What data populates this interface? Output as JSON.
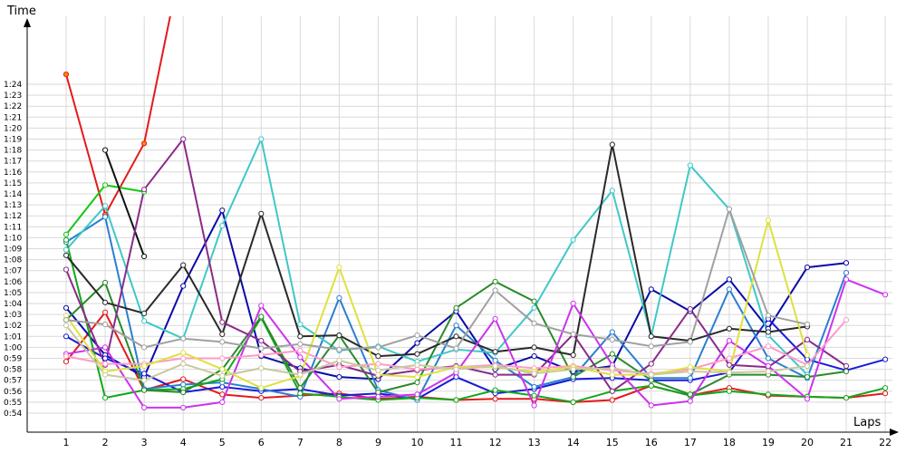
{
  "chart_data": {
    "type": "line",
    "title": "",
    "xlabel": "Laps",
    "ylabel": "Time",
    "x": [
      1,
      2,
      3,
      4,
      5,
      6,
      7,
      8,
      9,
      10,
      11,
      12,
      13,
      14,
      15,
      16,
      17,
      18,
      19,
      20,
      21,
      22
    ],
    "xlim": [
      0,
      22.5
    ],
    "ylim": [
      53,
      85
    ],
    "y_ticks": [
      "0:54",
      "0:55",
      "0:56",
      "0:57",
      "0:58",
      "0:59",
      "1:00",
      "1:01",
      "1:02",
      "1:03",
      "1:04",
      "1:05",
      "1:06",
      "1:07",
      "1:08",
      "1:09",
      "1:10",
      "1:11",
      "1:12",
      "1:13",
      "1:14",
      "1:15",
      "1:16",
      "1:17",
      "1:18",
      "1:19",
      "1:20",
      "1:21",
      "1:22",
      "1:23",
      "1:24"
    ],
    "y_tick_values": [
      54,
      55,
      56,
      57,
      58,
      59,
      60,
      61,
      62,
      63,
      64,
      65,
      66,
      67,
      68,
      69,
      70,
      71,
      72,
      73,
      74,
      75,
      76,
      77,
      78,
      79,
      80,
      81,
      82,
      83,
      84
    ],
    "grid": true,
    "legend": "none",
    "series": [
      {
        "color": "#e31a1c",
        "marker_fill": "#ff8c00",
        "values": [
          84.9,
          72.1,
          78.6,
          96.0,
          null,
          null,
          null,
          null,
          null,
          null,
          null,
          null,
          null,
          null,
          null,
          null,
          null,
          null,
          null,
          null,
          null,
          null
        ]
      },
      {
        "color": "#e31a1c",
        "values": [
          58.7,
          63.2,
          56.1,
          57.1,
          55.7,
          55.4,
          55.6,
          55.8,
          55.3,
          55.5,
          55.2,
          55.3,
          55.3,
          55.0,
          55.2,
          56.5,
          55.6,
          56.3,
          55.6,
          55.5,
          55.4,
          55.8
        ]
      },
      {
        "color": "#0a0aa8",
        "values": [
          63.6,
          59.3,
          57.3,
          65.6,
          72.5,
          59.2,
          58.1,
          57.3,
          57.1,
          60.4,
          63.3,
          58.0,
          59.2,
          57.8,
          58.3,
          65.3,
          63.3,
          66.2,
          61.7,
          67.3,
          67.7,
          null
        ]
      },
      {
        "color": "#1a1ad8",
        "values": [
          61.0,
          59.0,
          57.6,
          55.9,
          56.4,
          56.0,
          56.2,
          55.6,
          55.8,
          55.3,
          57.3,
          55.8,
          56.2,
          57.1,
          57.2,
          57.0,
          57.0,
          57.7,
          62.6,
          58.9,
          57.9,
          58.9
        ]
      },
      {
        "color": "#2a7fd0",
        "values": [
          69.6,
          71.9,
          56.2,
          56.6,
          56.8,
          56.2,
          55.5,
          64.5,
          56.1,
          55.2,
          62.0,
          58.8,
          56.4,
          57.3,
          61.4,
          57.2,
          57.2,
          65.3,
          59.0,
          57.2,
          66.8,
          null
        ]
      },
      {
        "color": "#3fc8c8",
        "values": [
          68.9,
          72.9,
          62.4,
          60.8,
          71.1,
          79.0,
          62.1,
          59.7,
          60.1,
          58.7,
          59.8,
          59.5,
          63.6,
          69.8,
          74.3,
          61.0,
          76.6,
          72.6,
          61.1,
          57.5,
          null,
          null
        ]
      },
      {
        "color": "#11a81a",
        "values": [
          69.8,
          55.4,
          56.1,
          56.2,
          57.1,
          62.7,
          55.8,
          55.5,
          55.2,
          55.4,
          55.2,
          56.1,
          55.6,
          55.0,
          56.0,
          56.5,
          55.6,
          56.0,
          55.7,
          55.5,
          55.4,
          56.3
        ]
      },
      {
        "color": "#11c811",
        "values": [
          70.3,
          74.8,
          74.2,
          null,
          null,
          null,
          null,
          null,
          null,
          null,
          null,
          null,
          null,
          null,
          null,
          null,
          null,
          null,
          null,
          null,
          null,
          null
        ]
      },
      {
        "color": "#2a8a2a",
        "values": [
          62.5,
          65.9,
          56.1,
          55.9,
          58.0,
          62.8,
          56.3,
          61.1,
          55.9,
          56.8,
          63.6,
          66.0,
          64.2,
          57.3,
          59.4,
          57.0,
          55.7,
          57.5,
          57.5,
          57.3,
          57.8,
          null
        ]
      },
      {
        "color": "#2a2a2a",
        "values": [
          68.4,
          64.1,
          63.1,
          67.5,
          61.2,
          72.2,
          61.0,
          61.1,
          59.2,
          59.4,
          61.0,
          59.6,
          60.0,
          59.3,
          78.5,
          61.0,
          60.6,
          61.7,
          61.4,
          61.9,
          null,
          null
        ]
      },
      {
        "color": "#111111",
        "values": [
          null,
          78.0,
          68.3,
          null,
          null,
          null,
          null,
          null,
          null,
          null,
          null,
          null,
          null,
          null,
          null,
          null,
          null,
          null,
          null,
          null,
          null,
          null
        ]
      },
      {
        "color": "#8a2a8a",
        "values": [
          67.1,
          58.4,
          74.4,
          79.0,
          62.3,
          60.6,
          57.8,
          58.4,
          57.4,
          57.9,
          58.3,
          57.5,
          57.5,
          61.2,
          56.0,
          58.5,
          63.5,
          58.4,
          58.2,
          60.7,
          58.3,
          null
        ]
      },
      {
        "color": "#cc33ee",
        "values": [
          59.4,
          60.0,
          54.5,
          54.5,
          55.0,
          63.8,
          59.1,
          55.3,
          55.5,
          55.7,
          57.7,
          62.6,
          54.7,
          64.0,
          58.4,
          54.7,
          55.1,
          60.6,
          58.3,
          55.3,
          66.2,
          64.8
        ]
      },
      {
        "color": "#ff9ac8",
        "values": [
          59.2,
          58.5,
          58.5,
          59.0,
          59.0,
          59.3,
          59.7,
          58.2,
          58.5,
          58.0,
          58.2,
          58.4,
          58.1,
          58.3,
          57.9,
          57.6,
          58.0,
          59.0,
          60.1,
          58.4,
          62.5,
          null
        ]
      },
      {
        "color": "#e0e040",
        "values": [
          62.9,
          57.8,
          58.3,
          59.5,
          58.0,
          56.3,
          57.4,
          67.3,
          57.5,
          57.3,
          58.2,
          58.2,
          57.8,
          58.2,
          57.5,
          57.5,
          58.2,
          57.8,
          71.6,
          59.3,
          null,
          null
        ]
      },
      {
        "color": "#a0a0a0",
        "values": [
          62.5,
          62.1,
          60.0,
          60.8,
          60.5,
          59.9,
          60.3,
          59.8,
          60.0,
          61.1,
          59.9,
          65.2,
          62.2,
          61.2,
          60.7,
          60.1,
          60.5,
          72.6,
          62.9,
          62.1,
          null,
          null
        ]
      },
      {
        "color": "#c8c8a0",
        "values": [
          62.0,
          57.5,
          57.0,
          58.5,
          57.4,
          58.1,
          57.5,
          58.8,
          57.9,
          58.4,
          58.0,
          58.3,
          57.6,
          58.0,
          58.1,
          57.5,
          57.8,
          57.7,
          57.8,
          58.3,
          null,
          null
        ]
      }
    ]
  }
}
